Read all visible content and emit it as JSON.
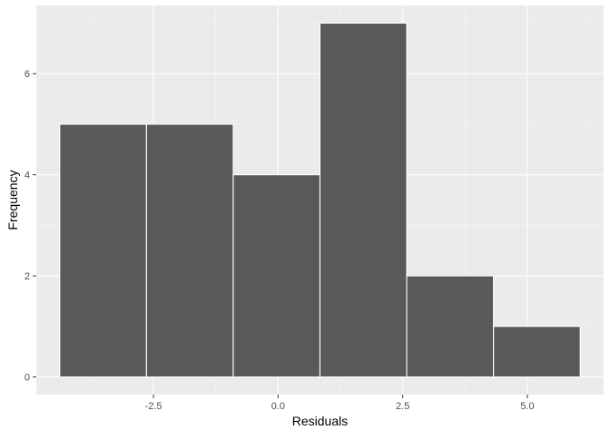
{
  "chart_data": {
    "type": "bar",
    "subtype": "histogram",
    "xlabel": "Residuals",
    "ylabel": "Frequency",
    "bins": [
      {
        "from": -4.38,
        "to": -2.64,
        "count": 5
      },
      {
        "from": -2.64,
        "to": -0.9,
        "count": 5
      },
      {
        "from": -0.9,
        "to": 0.84,
        "count": 4
      },
      {
        "from": 0.84,
        "to": 2.58,
        "count": 7
      },
      {
        "from": 2.58,
        "to": 4.32,
        "count": 2
      },
      {
        "from": 4.32,
        "to": 6.06,
        "count": 1
      }
    ],
    "xlim": [
      -4.85,
      6.53
    ],
    "ylim": [
      -0.35,
      7.35
    ],
    "x_ticks": [
      {
        "value": -2.5,
        "label": "-2.5"
      },
      {
        "value": 0.0,
        "label": "0.0"
      },
      {
        "value": 2.5,
        "label": "2.5"
      },
      {
        "value": 5.0,
        "label": "5.0"
      }
    ],
    "y_ticks": [
      {
        "value": 0,
        "label": "0"
      },
      {
        "value": 2,
        "label": "2"
      },
      {
        "value": 4,
        "label": "4"
      },
      {
        "value": 6,
        "label": "6"
      }
    ],
    "grid": true,
    "legend": "none",
    "colors": {
      "panel": "#ebebeb",
      "grid_major": "#ffffff",
      "grid_minor": "#f5f5f5",
      "bar_fill": "#595959",
      "bar_outline": "#ffffff",
      "tick_mark": "#333333"
    }
  }
}
